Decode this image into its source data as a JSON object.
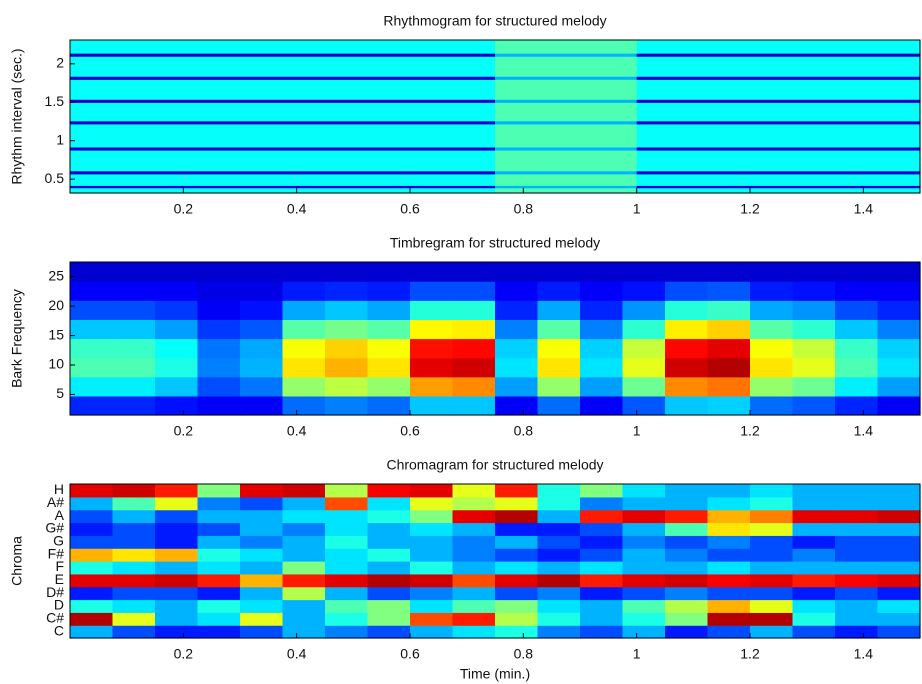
{
  "chart_data": [
    {
      "type": "heatmap",
      "title": "Rhythmogram for structured melody",
      "ylabel": "Rhythm interval (sec.)",
      "xlim": [
        0,
        1.5
      ],
      "xticks": [
        0.2,
        0.4,
        0.6,
        0.8,
        1,
        1.2,
        1.4
      ],
      "ylim": [
        0.32,
        2.31
      ],
      "yticks": [
        0.5,
        1,
        1.5,
        2
      ],
      "colormap": "jet",
      "clim": [
        0,
        1
      ],
      "xedges": [
        0,
        0.75,
        1,
        1.5
      ],
      "yedges": [
        0.32,
        0.39,
        0.42,
        0.57,
        0.61,
        0.88,
        0.92,
        1.22,
        1.26,
        1.5,
        1.54,
        1.8,
        1.84,
        2.1,
        2.14,
        2.31
      ],
      "values": [
        [
          0.38,
          0.45,
          0.38
        ],
        [
          0.08,
          0.3,
          0.08
        ],
        [
          0.38,
          0.45,
          0.38
        ],
        [
          0.08,
          0.3,
          0.08
        ],
        [
          0.38,
          0.45,
          0.38
        ],
        [
          0.08,
          0.3,
          0.08
        ],
        [
          0.38,
          0.45,
          0.38
        ],
        [
          0.08,
          0.3,
          0.08
        ],
        [
          0.38,
          0.45,
          0.38
        ],
        [
          0.08,
          0.3,
          0.08
        ],
        [
          0.38,
          0.45,
          0.38
        ],
        [
          0.08,
          0.3,
          0.08
        ],
        [
          0.38,
          0.45,
          0.38
        ],
        [
          0.08,
          0.3,
          0.08
        ],
        [
          0.38,
          0.45,
          0.38
        ]
      ]
    },
    {
      "type": "heatmap",
      "title": "Timbregram for structured melody",
      "ylabel": "Bark Frequency",
      "xlim": [
        0,
        1.5
      ],
      "xticks": [
        0.2,
        0.4,
        0.6,
        0.8,
        1,
        1.2,
        1.4
      ],
      "ylim": [
        1.5,
        27.5
      ],
      "yticks": [
        5,
        10,
        15,
        20,
        25
      ],
      "colormap": "jet",
      "clim": [
        0,
        1
      ],
      "xedges": [
        0,
        0.075,
        0.15,
        0.225,
        0.3,
        0.375,
        0.45,
        0.525,
        0.6,
        0.675,
        0.75,
        0.825,
        0.9,
        0.975,
        1.05,
        1.125,
        1.2,
        1.275,
        1.35,
        1.425,
        1.5
      ],
      "yedges": [
        1.5,
        4.75,
        8,
        11.25,
        14.5,
        17.75,
        21,
        24.25,
        27.5
      ],
      "values": [
        [
          0.16,
          0.16,
          0.14,
          0.12,
          0.12,
          0.23,
          0.25,
          0.23,
          0.32,
          0.32,
          0.12,
          0.23,
          0.12,
          0.21,
          0.32,
          0.33,
          0.23,
          0.21,
          0.16,
          0.12
        ],
        [
          0.36,
          0.36,
          0.32,
          0.2,
          0.24,
          0.52,
          0.56,
          0.52,
          0.72,
          0.74,
          0.28,
          0.52,
          0.28,
          0.48,
          0.74,
          0.76,
          0.52,
          0.48,
          0.36,
          0.28
        ],
        [
          0.45,
          0.45,
          0.4,
          0.25,
          0.3,
          0.65,
          0.7,
          0.65,
          0.9,
          0.92,
          0.35,
          0.65,
          0.35,
          0.6,
          0.92,
          0.95,
          0.65,
          0.6,
          0.45,
          0.35
        ],
        [
          0.43,
          0.43,
          0.38,
          0.24,
          0.29,
          0.62,
          0.67,
          0.62,
          0.86,
          0.87,
          0.33,
          0.62,
          0.33,
          0.57,
          0.87,
          0.9,
          0.62,
          0.57,
          0.43,
          0.33
        ],
        [
          0.32,
          0.32,
          0.28,
          0.18,
          0.21,
          0.46,
          0.49,
          0.46,
          0.63,
          0.64,
          0.25,
          0.46,
          0.25,
          0.42,
          0.64,
          0.67,
          0.46,
          0.42,
          0.32,
          0.25
        ],
        [
          0.2,
          0.2,
          0.18,
          0.12,
          0.14,
          0.29,
          0.32,
          0.29,
          0.41,
          0.41,
          0.16,
          0.29,
          0.16,
          0.27,
          0.41,
          0.43,
          0.29,
          0.27,
          0.2,
          0.16
        ],
        [
          0.12,
          0.12,
          0.12,
          0.1,
          0.1,
          0.15,
          0.16,
          0.15,
          0.2,
          0.2,
          0.12,
          0.15,
          0.12,
          0.14,
          0.2,
          0.21,
          0.15,
          0.14,
          0.12,
          0.12
        ],
        [
          0.08,
          0.08,
          0.08,
          0.08,
          0.08,
          0.08,
          0.08,
          0.08,
          0.08,
          0.08,
          0.08,
          0.08,
          0.08,
          0.08,
          0.08,
          0.08,
          0.08,
          0.08,
          0.08,
          0.08
        ]
      ]
    },
    {
      "type": "heatmap",
      "title": "Chromagram for structured melody",
      "ylabel": "Chroma",
      "xlabel": "Time (min.)",
      "xlim": [
        0,
        1.5
      ],
      "xticks": [
        0.2,
        0.4,
        0.6,
        0.8,
        1,
        1.2,
        1.4
      ],
      "ycategories": [
        "C",
        "C#",
        "D",
        "D#",
        "E",
        "F",
        "F#",
        "G",
        "G#",
        "A",
        "A#",
        "H"
      ],
      "colormap": "jet",
      "clim": [
        0,
        1
      ],
      "xedges": [
        0,
        0.075,
        0.15,
        0.225,
        0.3,
        0.375,
        0.45,
        0.525,
        0.6,
        0.675,
        0.75,
        0.825,
        0.9,
        0.975,
        1.05,
        1.125,
        1.2,
        1.275,
        1.35,
        1.425,
        1.5
      ],
      "values": [
        [
          0.3,
          0.2,
          0.15,
          0.15,
          0.2,
          0.3,
          0.25,
          0.2,
          0.3,
          0.35,
          0.4,
          0.25,
          0.2,
          0.3,
          0.15,
          0.2,
          0.3,
          0.2,
          0.15,
          0.2
        ],
        [
          0.95,
          0.6,
          0.3,
          0.35,
          0.6,
          0.3,
          0.4,
          0.5,
          0.8,
          0.85,
          0.55,
          0.4,
          0.3,
          0.4,
          0.5,
          0.95,
          0.95,
          0.4,
          0.3,
          0.3
        ],
        [
          0.4,
          0.35,
          0.3,
          0.4,
          0.35,
          0.3,
          0.45,
          0.5,
          0.35,
          0.45,
          0.5,
          0.35,
          0.3,
          0.45,
          0.55,
          0.7,
          0.6,
          0.35,
          0.3,
          0.35
        ],
        [
          0.15,
          0.2,
          0.2,
          0.15,
          0.3,
          0.55,
          0.3,
          0.2,
          0.25,
          0.3,
          0.2,
          0.25,
          0.15,
          0.2,
          0.25,
          0.2,
          0.2,
          0.15,
          0.2,
          0.15
        ],
        [
          0.9,
          0.9,
          0.92,
          0.85,
          0.7,
          0.85,
          0.9,
          0.95,
          0.92,
          0.8,
          0.9,
          0.95,
          0.85,
          0.9,
          0.92,
          0.88,
          0.9,
          0.85,
          0.88,
          0.9
        ],
        [
          0.4,
          0.35,
          0.3,
          0.35,
          0.3,
          0.5,
          0.35,
          0.3,
          0.4,
          0.3,
          0.35,
          0.3,
          0.35,
          0.3,
          0.3,
          0.35,
          0.3,
          0.3,
          0.3,
          0.3
        ],
        [
          0.7,
          0.65,
          0.7,
          0.4,
          0.35,
          0.3,
          0.35,
          0.4,
          0.3,
          0.25,
          0.2,
          0.15,
          0.2,
          0.3,
          0.25,
          0.2,
          0.2,
          0.25,
          0.2,
          0.2
        ],
        [
          0.2,
          0.2,
          0.15,
          0.3,
          0.25,
          0.3,
          0.4,
          0.3,
          0.3,
          0.25,
          0.3,
          0.2,
          0.15,
          0.25,
          0.2,
          0.25,
          0.2,
          0.15,
          0.2,
          0.2
        ],
        [
          0.15,
          0.2,
          0.15,
          0.2,
          0.3,
          0.25,
          0.35,
          0.3,
          0.35,
          0.3,
          0.15,
          0.15,
          0.2,
          0.3,
          0.45,
          0.65,
          0.6,
          0.3,
          0.3,
          0.3
        ],
        [
          0.2,
          0.3,
          0.2,
          0.3,
          0.3,
          0.35,
          0.35,
          0.4,
          0.5,
          0.9,
          0.95,
          0.3,
          0.85,
          0.9,
          0.85,
          0.7,
          0.75,
          0.9,
          0.9,
          0.92
        ],
        [
          0.3,
          0.45,
          0.6,
          0.25,
          0.2,
          0.3,
          0.8,
          0.35,
          0.6,
          0.55,
          0.6,
          0.4,
          0.25,
          0.3,
          0.3,
          0.35,
          0.4,
          0.3,
          0.3,
          0.3
        ],
        [
          0.9,
          0.92,
          0.85,
          0.5,
          0.9,
          0.92,
          0.55,
          0.88,
          0.9,
          0.6,
          0.85,
          0.4,
          0.5,
          0.35,
          0.3,
          0.3,
          0.35,
          0.3,
          0.3,
          0.3
        ]
      ]
    }
  ]
}
